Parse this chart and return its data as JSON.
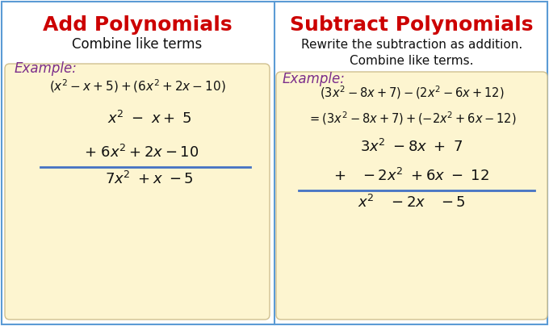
{
  "title_left": "Add Polynomials",
  "title_right": "Subtract Polynomials",
  "title_color": "#cc0000",
  "subtitle_left": "Combine like terms",
  "subtitle_right_line1": "Rewrite the subtraction as addition.",
  "subtitle_right_line2": "Combine like terms.",
  "subtitle_color": "#111111",
  "example_color": "#7b2d8b",
  "box_bg_color": "#fdf5d0",
  "divider_color": "#4472c4",
  "border_color": "#5b9bd5",
  "math_color": "#111111",
  "figsize": [
    6.8,
    4.04
  ],
  "dpi": 100
}
